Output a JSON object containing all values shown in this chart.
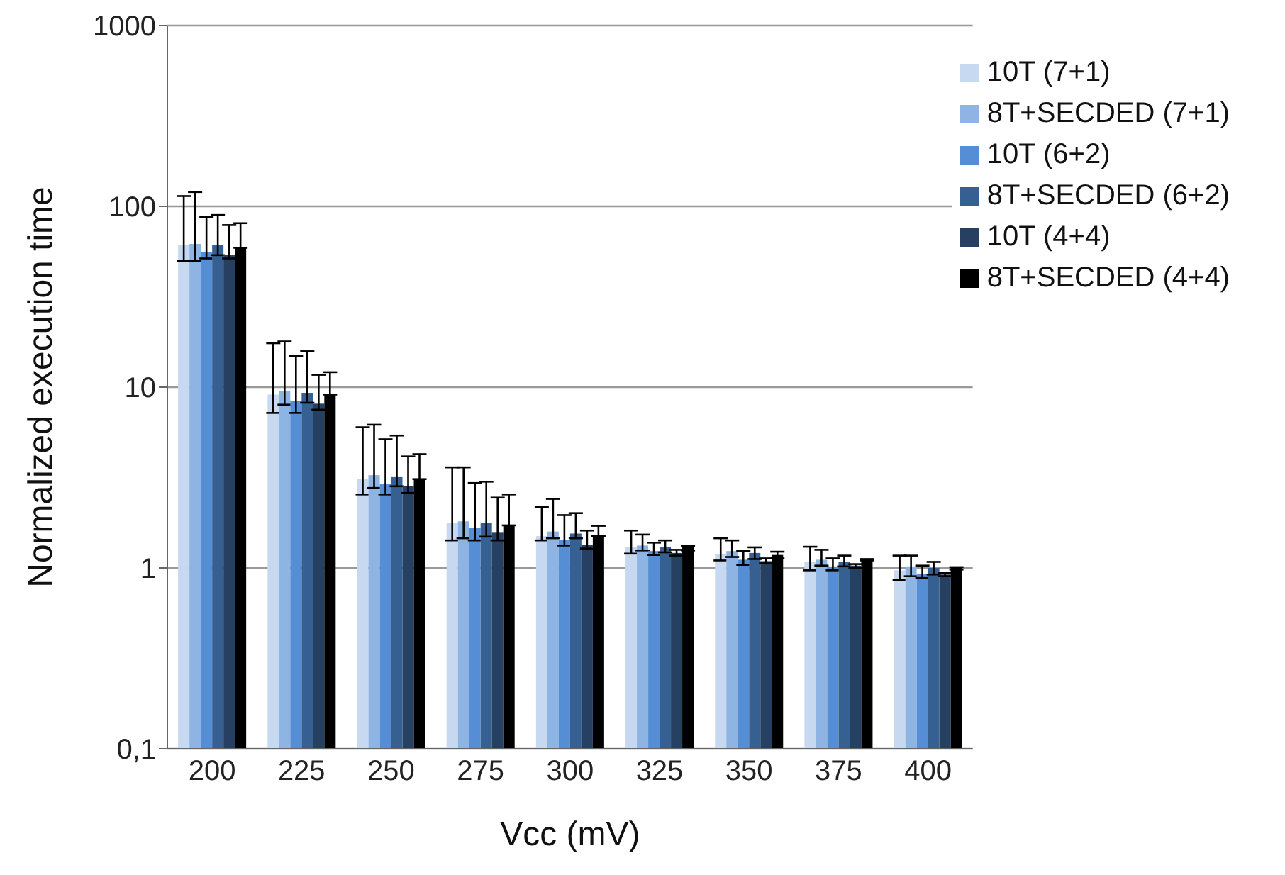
{
  "chart_data": {
    "type": "bar",
    "xlabel": "Vcc (mV)",
    "ylabel": "Normalized execution time",
    "categories": [
      "200",
      "225",
      "250",
      "275",
      "300",
      "325",
      "350",
      "375",
      "400"
    ],
    "log": "y",
    "ylim": [
      0.1,
      1000
    ],
    "yticks": [
      {
        "value": 0.1,
        "label": "0,1"
      },
      1,
      10,
      100,
      1000
    ],
    "grid": "y",
    "legend": "top right",
    "series": [
      {
        "name": "10T (7+1)",
        "color": "#c6d9f1",
        "values": [
          61,
          9.1,
          3.1,
          1.77,
          1.5,
          1.3,
          1.19,
          1.08,
          0.97
        ],
        "errors": [
          [
            50,
            114
          ],
          [
            7.2,
            17.5
          ],
          [
            2.55,
            6
          ],
          [
            1.42,
            3.6
          ],
          [
            1.42,
            2.17
          ],
          [
            1.2,
            1.61
          ],
          [
            1.1,
            1.46
          ],
          [
            0.97,
            1.31
          ],
          [
            0.86,
            1.17
          ]
        ]
      },
      {
        "name": "8T+SECDED (7+1)",
        "color": "#8eb4e3",
        "values": [
          62,
          9.5,
          3.26,
          1.81,
          1.59,
          1.33,
          1.24,
          1.11,
          1.02
        ],
        "errors": [
          [
            50,
            120
          ],
          [
            8,
            17.9
          ],
          [
            2.77,
            6.2
          ],
          [
            1.46,
            3.6
          ],
          [
            1.46,
            2.41
          ],
          [
            1.25,
            1.53
          ],
          [
            1.15,
            1.42
          ],
          [
            1.03,
            1.26
          ],
          [
            0.9,
            1.17
          ]
        ]
      },
      {
        "name": "10T (6+2)",
        "color": "#558ed5",
        "values": [
          56,
          8.4,
          2.92,
          1.66,
          1.43,
          1.24,
          1.11,
          1.02,
          0.93
        ],
        "errors": [
          [
            51.5,
            87.5
          ],
          [
            7.2,
            14.9
          ],
          [
            2.55,
            5.15
          ],
          [
            1.42,
            2.95
          ],
          [
            1.33,
            1.96
          ],
          [
            1.18,
            1.38
          ],
          [
            1.04,
            1.24
          ],
          [
            0.97,
            1.13
          ],
          [
            0.88,
            1.03
          ]
        ]
      },
      {
        "name": "8T+SECDED (6+2)",
        "color": "#376092",
        "values": [
          61,
          9.3,
          3.18,
          1.77,
          1.55,
          1.3,
          1.21,
          1.08,
          1
        ],
        "errors": [
          [
            53.7,
            89.6
          ],
          [
            8.2,
            15.8
          ],
          [
            2.83,
            5.4
          ],
          [
            1.49,
            3
          ],
          [
            1.46,
            2.01
          ],
          [
            1.22,
            1.42
          ],
          [
            1.12,
            1.3
          ],
          [
            1.02,
            1.17
          ],
          [
            0.92,
            1.08
          ]
        ]
      },
      {
        "name": "10T (4+4)",
        "color": "#254061",
        "values": [
          54,
          8.1,
          2.85,
          1.58,
          1.34,
          1.21,
          1.09,
          1.03,
          0.92
        ],
        "errors": [
          [
            51.5,
            78.8
          ],
          [
            7.5,
            11.7
          ],
          [
            2.6,
            4.14
          ],
          [
            1.42,
            2.45
          ],
          [
            1.28,
            1.61
          ],
          [
            1.17,
            1.26
          ],
          [
            1.06,
            1.13
          ],
          [
            1,
            1.05
          ],
          [
            0.9,
            0.94
          ]
        ]
      },
      {
        "name": "8T+SECDED (4+4)",
        "color": "#000000",
        "values": [
          59,
          9.1,
          3.1,
          1.72,
          1.5,
          1.3,
          1.18,
          1.11,
          1
        ],
        "errors": [
          [
            59,
            80.7
          ],
          [
            9.1,
            12.1
          ],
          [
            3.1,
            4.26
          ],
          [
            1.72,
            2.55
          ],
          [
            1.5,
            1.71
          ],
          [
            1.25,
            1.32
          ],
          [
            1.13,
            1.23
          ],
          [
            1.1,
            1.12
          ],
          [
            0.98,
            1.01
          ]
        ]
      }
    ]
  }
}
